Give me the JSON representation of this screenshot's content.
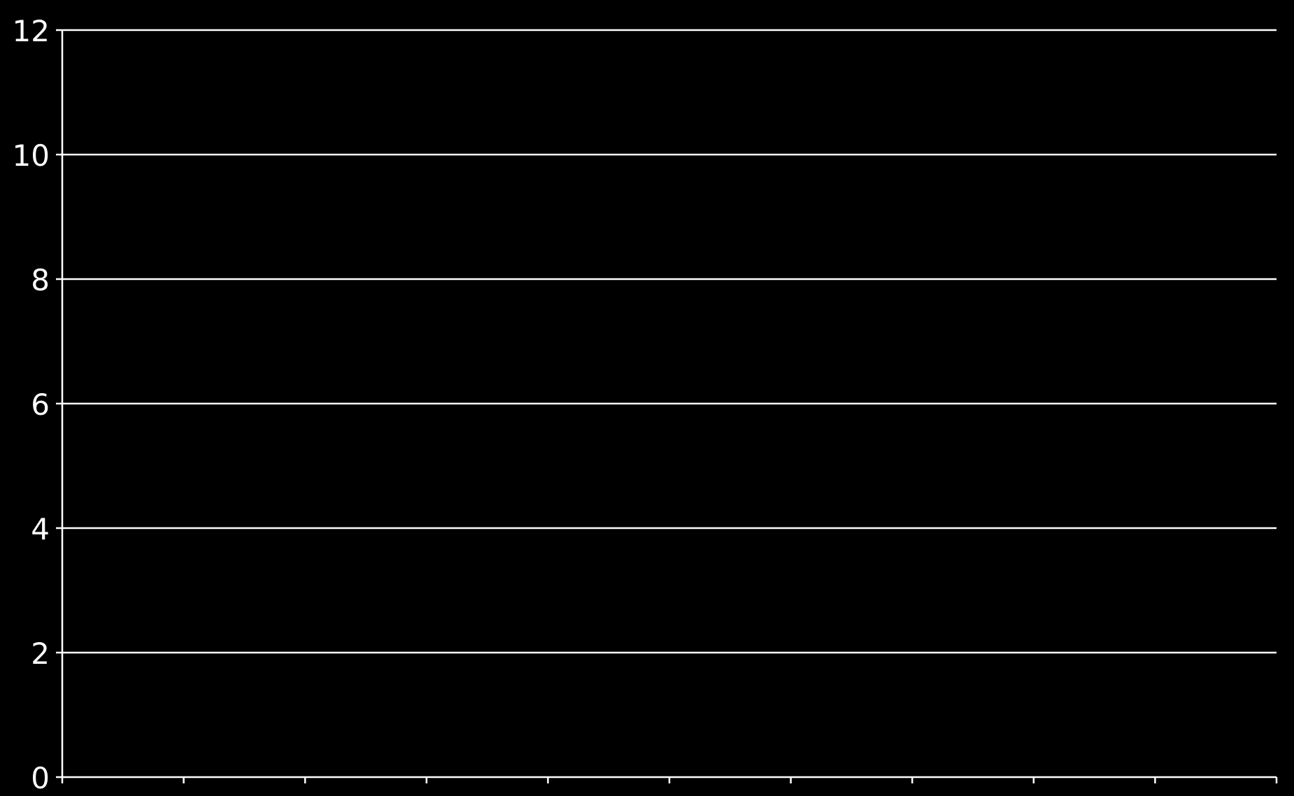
{
  "chart_data": {
    "type": "bar",
    "title": "",
    "xlabel": "",
    "ylabel": "",
    "categories": [
      "",
      "",
      "",
      "",
      "",
      "",
      "",
      "",
      "",
      ""
    ],
    "series": [],
    "ylim": [
      0,
      12
    ],
    "yticks": [
      "0",
      "2",
      "4",
      "6",
      "8",
      "10",
      "12"
    ],
    "grid": true,
    "legend": "none",
    "colors": {
      "background": "#000000",
      "axis": "#ffffff",
      "grid": "#ffffff",
      "text": "#ffffff"
    }
  }
}
